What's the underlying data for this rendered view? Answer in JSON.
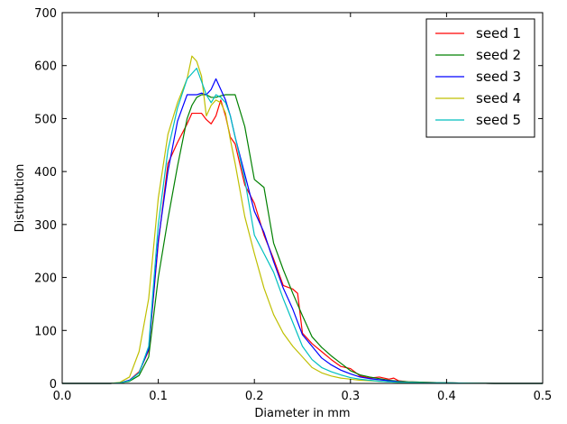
{
  "chart_data": {
    "type": "line",
    "title": "",
    "xlabel": "Diameter in mm",
    "ylabel": "Distribution",
    "xlim": [
      0,
      0.5
    ],
    "ylim": [
      0,
      700
    ],
    "xticks": [
      0.0,
      0.1,
      0.2,
      0.3,
      0.4,
      0.5
    ],
    "xtick_labels": [
      "0.0",
      "0.1",
      "0.2",
      "0.3",
      "0.4",
      "0.5"
    ],
    "yticks": [
      0,
      100,
      200,
      300,
      400,
      500,
      600,
      700
    ],
    "ytick_labels": [
      "0",
      "100",
      "200",
      "300",
      "400",
      "500",
      "600",
      "700"
    ],
    "grid": false,
    "legend_position": "top-right",
    "series": [
      {
        "name": "seed 1",
        "color": "#ff0000",
        "x": [
          0,
          0.05,
          0.06,
          0.07,
          0.08,
          0.09,
          0.1,
          0.11,
          0.12,
          0.13,
          0.135,
          0.14,
          0.145,
          0.15,
          0.155,
          0.16,
          0.165,
          0.17,
          0.175,
          0.18,
          0.19,
          0.2,
          0.21,
          0.22,
          0.23,
          0.24,
          0.245,
          0.25,
          0.26,
          0.27,
          0.28,
          0.29,
          0.3,
          0.31,
          0.32,
          0.33,
          0.34,
          0.345,
          0.35,
          0.36,
          0.38,
          0.4,
          0.45,
          0.5
        ],
        "y": [
          0,
          0,
          1,
          6,
          22,
          62,
          265,
          415,
          455,
          490,
          510,
          510,
          510,
          498,
          490,
          505,
          535,
          505,
          465,
          452,
          375,
          340,
          280,
          235,
          185,
          178,
          170,
          95,
          75,
          60,
          45,
          32,
          28,
          14,
          10,
          12,
          8,
          10,
          5,
          3,
          2,
          1,
          0,
          0
        ]
      },
      {
        "name": "seed 2",
        "color": "#008000",
        "x": [
          0,
          0.05,
          0.06,
          0.07,
          0.08,
          0.09,
          0.1,
          0.11,
          0.12,
          0.13,
          0.135,
          0.14,
          0.145,
          0.15,
          0.155,
          0.16,
          0.165,
          0.17,
          0.175,
          0.18,
          0.19,
          0.2,
          0.21,
          0.22,
          0.23,
          0.24,
          0.25,
          0.26,
          0.27,
          0.28,
          0.29,
          0.3,
          0.31,
          0.32,
          0.33,
          0.34,
          0.35,
          0.36,
          0.38,
          0.4,
          0.45,
          0.5
        ],
        "y": [
          0,
          0,
          1,
          4,
          15,
          50,
          200,
          310,
          410,
          500,
          525,
          540,
          545,
          545,
          540,
          540,
          543,
          545,
          545,
          545,
          485,
          385,
          370,
          265,
          215,
          170,
          128,
          88,
          68,
          52,
          38,
          24,
          16,
          12,
          9,
          6,
          4,
          3,
          2,
          1,
          0,
          0
        ]
      },
      {
        "name": "seed 3",
        "color": "#0000ff",
        "x": [
          0,
          0.05,
          0.06,
          0.07,
          0.08,
          0.09,
          0.1,
          0.11,
          0.12,
          0.13,
          0.14,
          0.145,
          0.15,
          0.155,
          0.16,
          0.165,
          0.17,
          0.175,
          0.18,
          0.19,
          0.2,
          0.21,
          0.22,
          0.23,
          0.24,
          0.25,
          0.26,
          0.27,
          0.28,
          0.29,
          0.3,
          0.31,
          0.32,
          0.33,
          0.34,
          0.35,
          0.36,
          0.38,
          0.4,
          0.45,
          0.5
        ],
        "y": [
          0,
          0,
          1,
          6,
          20,
          65,
          270,
          400,
          495,
          545,
          545,
          548,
          545,
          555,
          575,
          555,
          535,
          505,
          465,
          395,
          325,
          285,
          230,
          180,
          140,
          92,
          70,
          48,
          35,
          25,
          18,
          12,
          9,
          7,
          5,
          3,
          2,
          1,
          1,
          0,
          0
        ]
      },
      {
        "name": "seed 4",
        "color": "#bfbf00",
        "x": [
          0,
          0.05,
          0.06,
          0.07,
          0.08,
          0.09,
          0.1,
          0.11,
          0.12,
          0.13,
          0.135,
          0.14,
          0.145,
          0.15,
          0.155,
          0.16,
          0.165,
          0.17,
          0.175,
          0.18,
          0.19,
          0.2,
          0.21,
          0.22,
          0.23,
          0.24,
          0.25,
          0.26,
          0.27,
          0.28,
          0.29,
          0.3,
          0.31,
          0.32,
          0.33,
          0.34,
          0.35,
          0.36,
          0.38,
          0.4,
          0.45,
          0.5
        ],
        "y": [
          0,
          0,
          2,
          12,
          60,
          160,
          350,
          470,
          530,
          575,
          618,
          608,
          580,
          505,
          525,
          535,
          530,
          510,
          460,
          415,
          315,
          245,
          180,
          130,
          95,
          70,
          50,
          30,
          20,
          14,
          10,
          8,
          6,
          5,
          4,
          3,
          2,
          2,
          1,
          1,
          0,
          0
        ]
      },
      {
        "name": "seed 5",
        "color": "#00bfbf",
        "x": [
          0,
          0.05,
          0.06,
          0.07,
          0.08,
          0.09,
          0.1,
          0.11,
          0.12,
          0.13,
          0.135,
          0.14,
          0.145,
          0.15,
          0.155,
          0.16,
          0.165,
          0.17,
          0.175,
          0.18,
          0.19,
          0.2,
          0.21,
          0.22,
          0.23,
          0.24,
          0.25,
          0.26,
          0.27,
          0.28,
          0.29,
          0.3,
          0.31,
          0.32,
          0.33,
          0.34,
          0.35,
          0.36,
          0.38,
          0.4,
          0.45,
          0.5
        ],
        "y": [
          0,
          0,
          1,
          5,
          20,
          70,
          300,
          440,
          520,
          575,
          585,
          595,
          570,
          545,
          530,
          545,
          540,
          530,
          505,
          465,
          385,
          280,
          245,
          210,
          160,
          115,
          70,
          45,
          30,
          22,
          16,
          11,
          8,
          6,
          4,
          3,
          2,
          2,
          1,
          1,
          0,
          0
        ]
      }
    ]
  }
}
